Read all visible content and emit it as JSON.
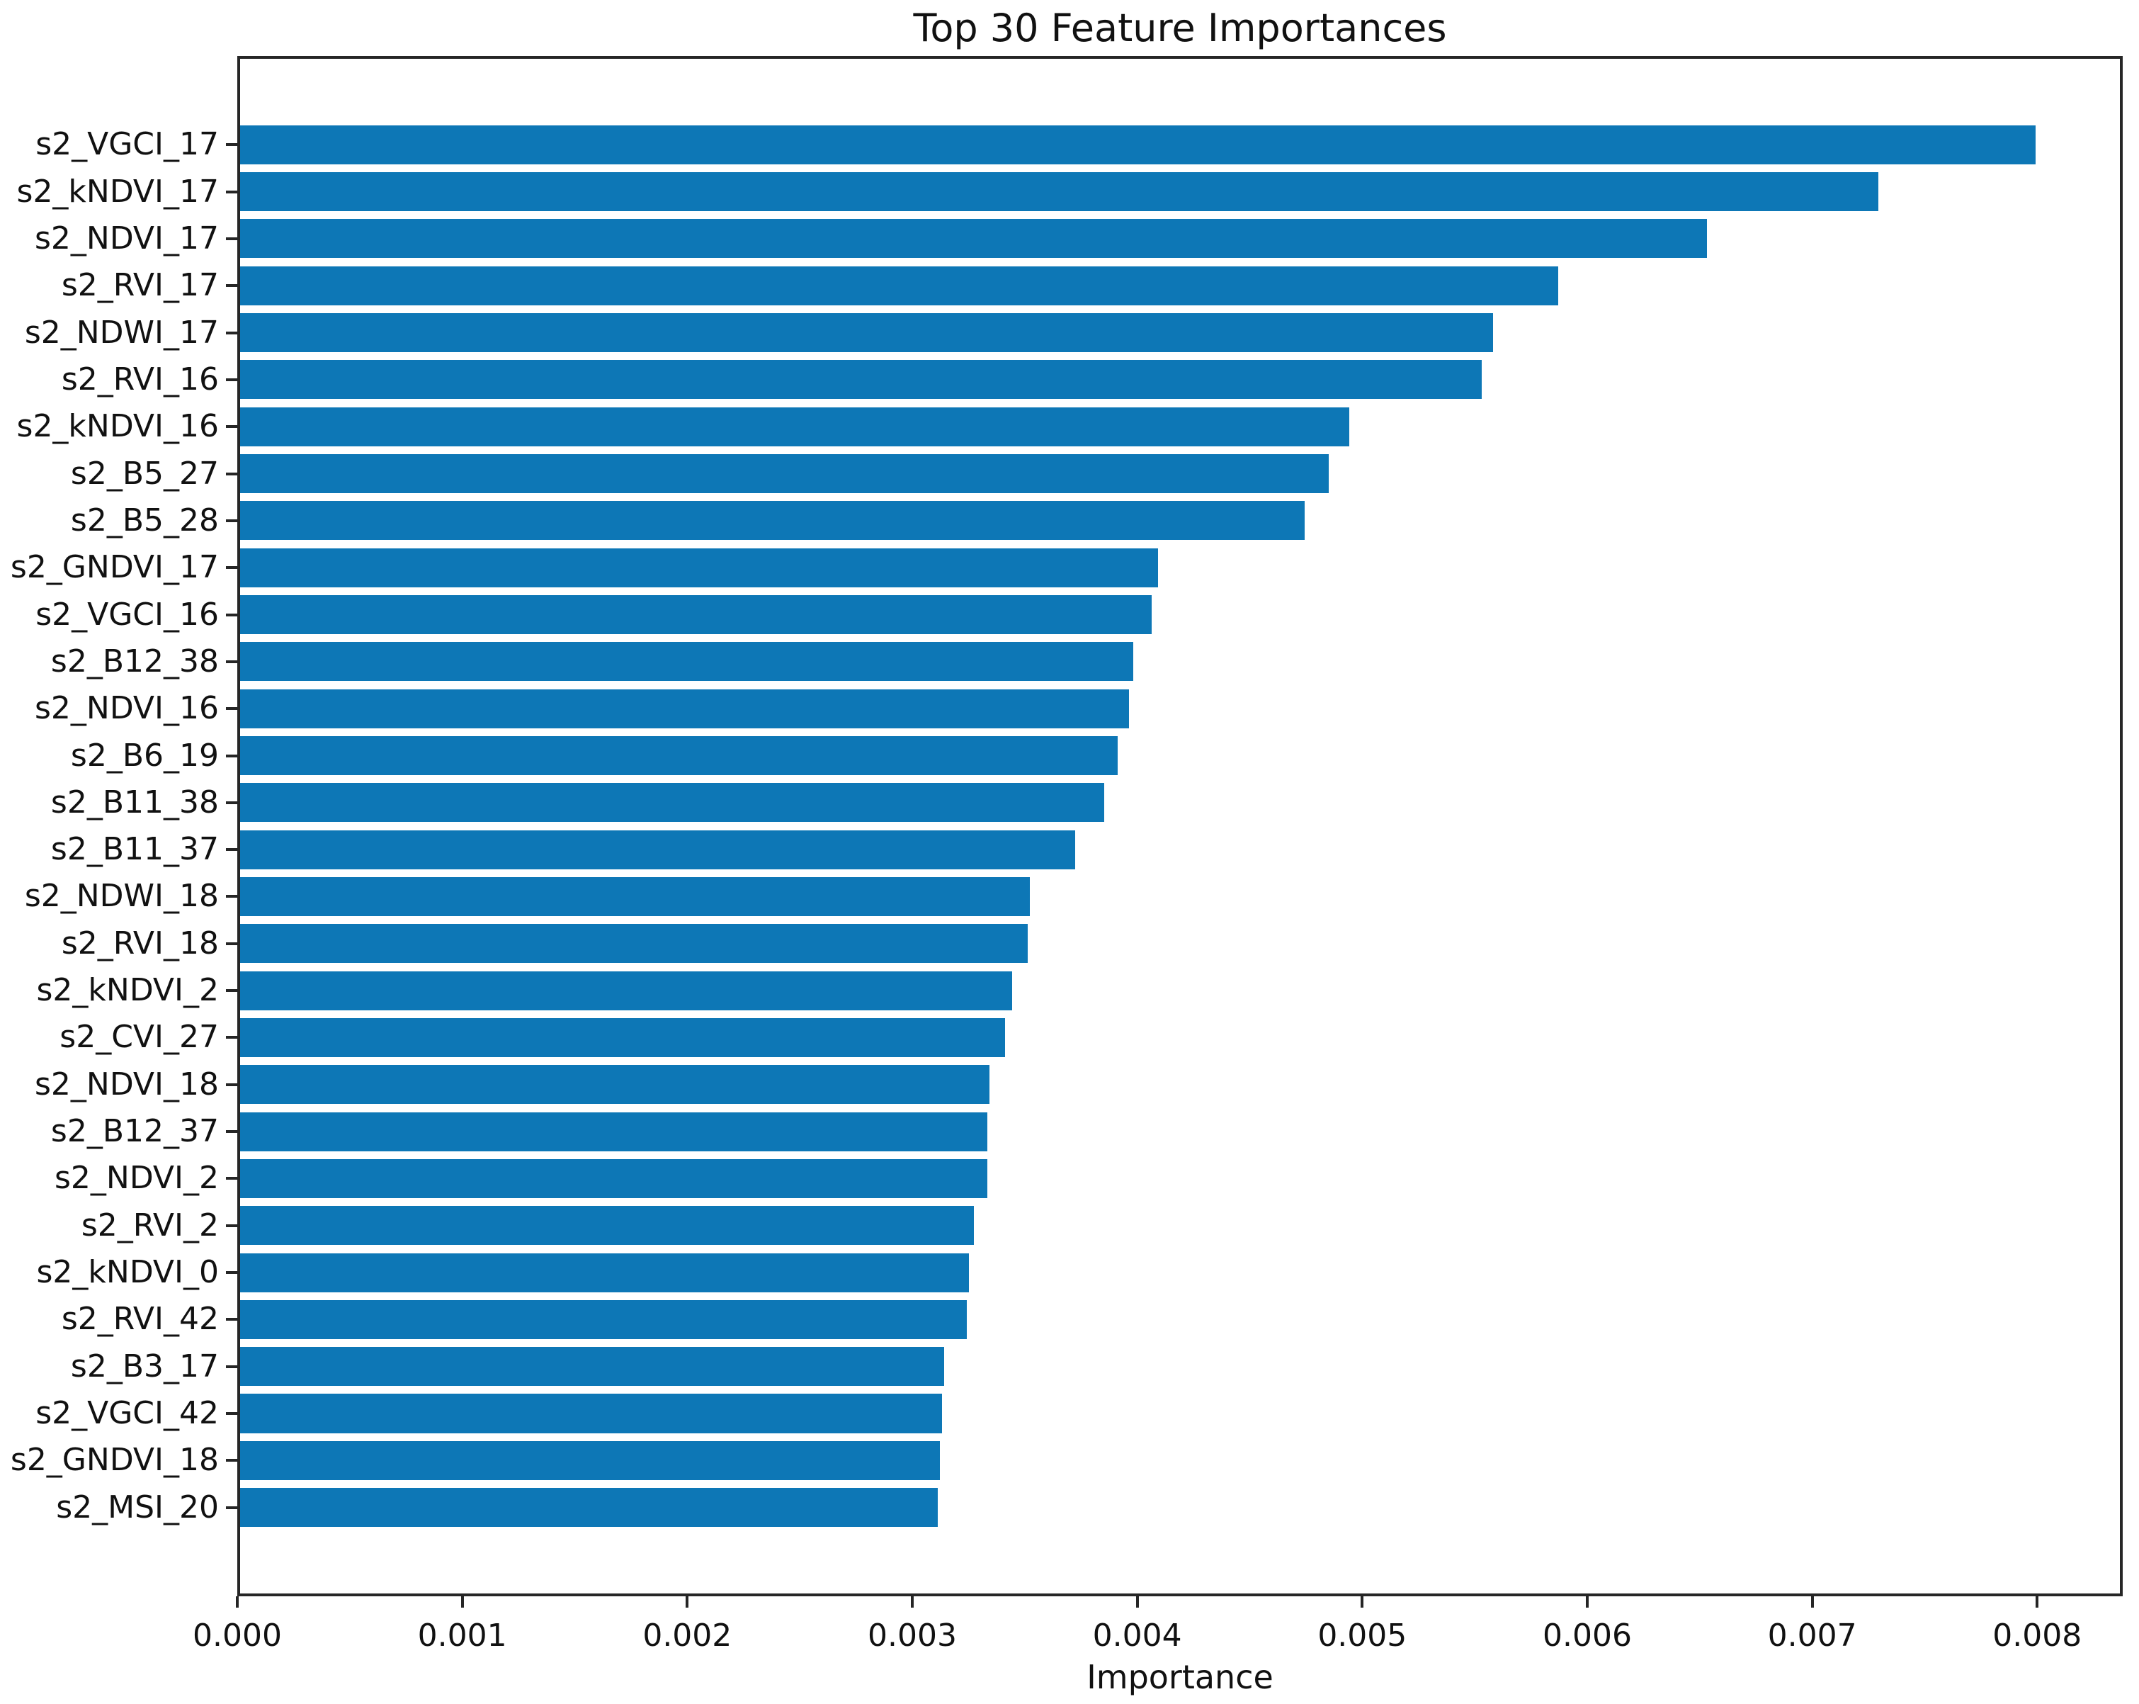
{
  "chart_data": {
    "type": "bar",
    "orientation": "horizontal",
    "title": "Top 30 Feature Importances",
    "xlabel": "Importance",
    "ylabel": "",
    "categories": [
      "s2_VGCI_17",
      "s2_kNDVI_17",
      "s2_NDVI_17",
      "s2_RVI_17",
      "s2_NDWI_17",
      "s2_RVI_16",
      "s2_kNDVI_16",
      "s2_B5_27",
      "s2_B5_28",
      "s2_GNDVI_17",
      "s2_VGCI_16",
      "s2_B12_38",
      "s2_NDVI_16",
      "s2_B6_19",
      "s2_B11_38",
      "s2_B11_37",
      "s2_NDWI_18",
      "s2_RVI_18",
      "s2_kNDVI_2",
      "s2_CVI_27",
      "s2_NDVI_18",
      "s2_B12_37",
      "s2_NDVI_2",
      "s2_RVI_2",
      "s2_kNDVI_0",
      "s2_RVI_42",
      "s2_B3_17",
      "s2_VGCI_42",
      "s2_GNDVI_18",
      "s2_MSI_20"
    ],
    "values": [
      0.00798,
      0.00728,
      0.00652,
      0.00586,
      0.00557,
      0.00552,
      0.00493,
      0.00484,
      0.00473,
      0.00408,
      0.00405,
      0.00397,
      0.00395,
      0.0039,
      0.00384,
      0.00371,
      0.00351,
      0.0035,
      0.00343,
      0.0034,
      0.00333,
      0.00332,
      0.00332,
      0.00326,
      0.00324,
      0.00323,
      0.00313,
      0.00312,
      0.00311,
      0.0031
    ],
    "xlim": [
      0,
      0.00838
    ],
    "xticks": [
      0.0,
      0.001,
      0.002,
      0.003,
      0.004,
      0.005,
      0.006,
      0.007,
      0.008
    ],
    "xtick_labels": [
      "0.000",
      "0.001",
      "0.002",
      "0.003",
      "0.004",
      "0.005",
      "0.006",
      "0.007",
      "0.008"
    ],
    "bar_color": "#0d77b6",
    "spine_color": "#262626",
    "grid": false,
    "legend": null
  }
}
